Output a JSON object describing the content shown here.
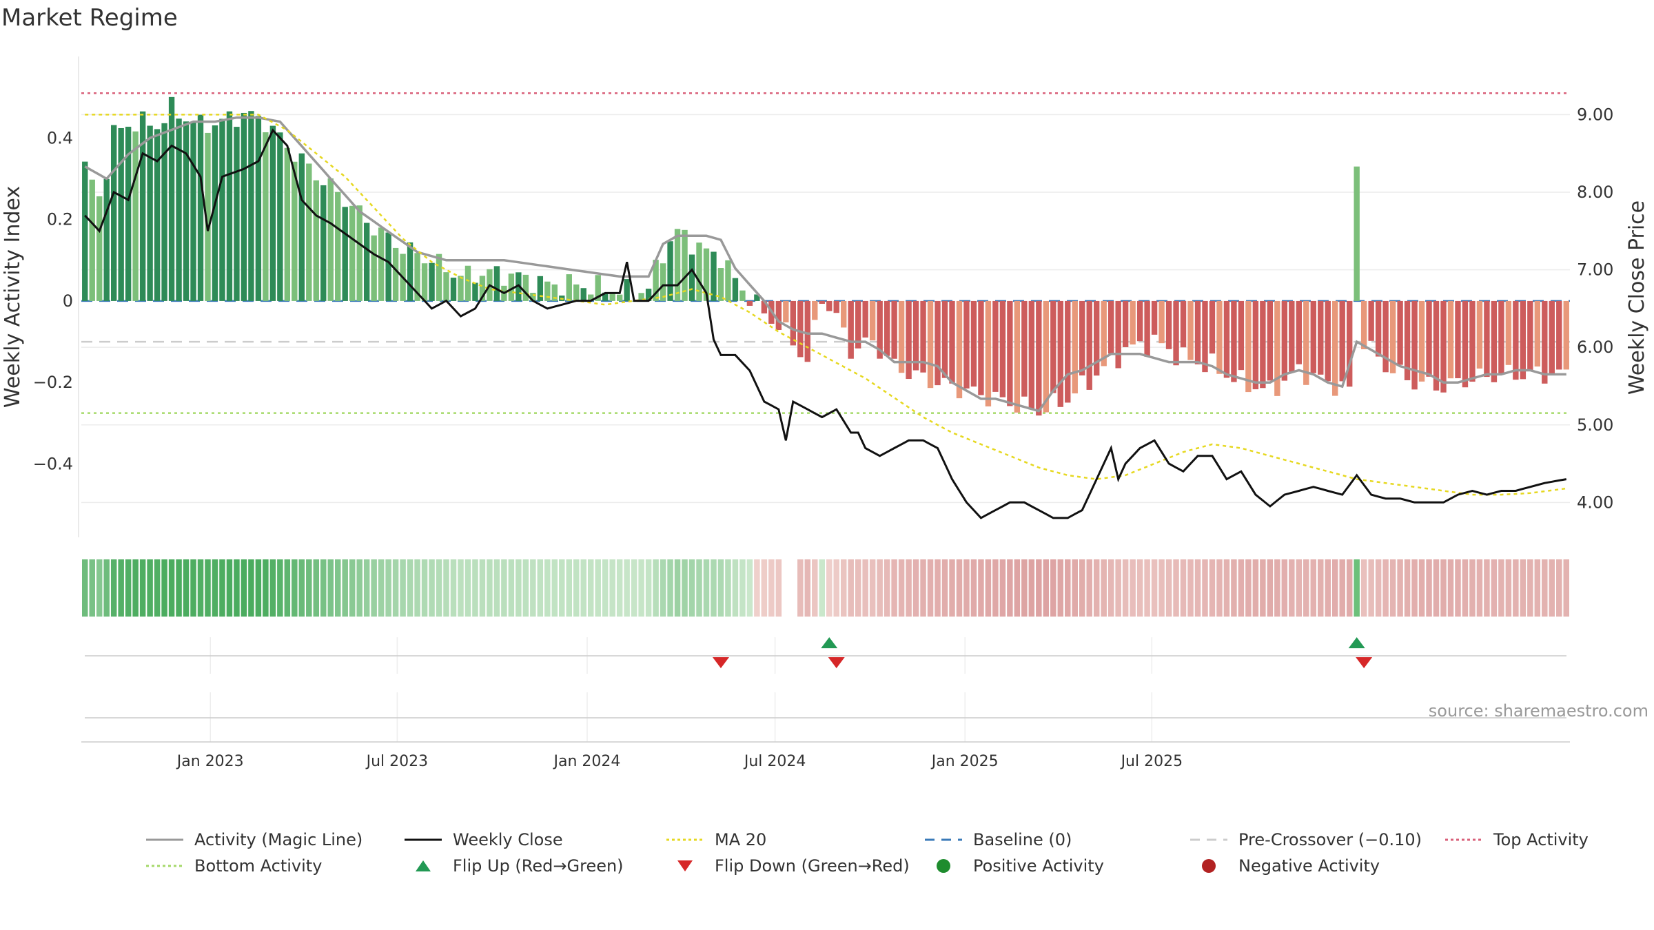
{
  "title": "Market Regime",
  "source_text": "source: sharemaestro.com",
  "chart_data": {
    "type": "bar",
    "y_left_label": "Weekly Activity Index",
    "y_right_label": "Weekly Close Price",
    "y_left_ticks": [
      "0.4",
      "0.2",
      "0",
      "−0.2",
      "−0.4"
    ],
    "y_left_tick_values": [
      0.4,
      0.2,
      0,
      -0.2,
      -0.4
    ],
    "y_right_ticks": [
      "9.00",
      "8.00",
      "7.00",
      "6.00",
      "5.00",
      "4.00"
    ],
    "y_right_tick_values": [
      9,
      8,
      7,
      6,
      5,
      4
    ],
    "ylim_left": [
      -0.58,
      0.6
    ],
    "ylim_right": [
      3.55,
      9.75
    ],
    "x_tick_labels": [
      "Jan 2023",
      "Jul 2023",
      "Jan 2024",
      "Jul 2024",
      "Jan 2025",
      "Jul 2025"
    ],
    "x_tick_dates": [
      "2023-01-01",
      "2023-07-01",
      "2024-01-01",
      "2024-07-01",
      "2025-01-01",
      "2025-07-01"
    ],
    "x_range": [
      "2022-08-29",
      "2025-09-29"
    ],
    "reference_lines": {
      "baseline": 0,
      "pre_crossover": -0.1,
      "top_activity": 0.51,
      "bottom_activity": -0.275
    },
    "activity_knots": [
      [
        0,
        0.33
      ],
      [
        2,
        0.25
      ],
      [
        4,
        0.41
      ],
      [
        7,
        0.44
      ],
      [
        10,
        0.43
      ],
      [
        12,
        0.47
      ],
      [
        14,
        0.45
      ],
      [
        16,
        0.43
      ],
      [
        19,
        0.44
      ],
      [
        22,
        0.46
      ],
      [
        25,
        0.44
      ],
      [
        28,
        0.38
      ],
      [
        32,
        0.31
      ],
      [
        36,
        0.25
      ],
      [
        40,
        0.18
      ],
      [
        44,
        0.13
      ],
      [
        48,
        0.1
      ],
      [
        52,
        0.06
      ],
      [
        56,
        0.07
      ],
      [
        60,
        0.06
      ],
      [
        64,
        0.04
      ],
      [
        68,
        0.04
      ],
      [
        72,
        0.03
      ],
      [
        76,
        0.02
      ],
      [
        78,
        0.03
      ],
      [
        80,
        0.12
      ],
      [
        82,
        0.17
      ],
      [
        86,
        0.12
      ],
      [
        88,
        0.11
      ],
      [
        90,
        0.05
      ],
      [
        92,
        0.01
      ],
      [
        94,
        -0.03
      ],
      [
        96,
        -0.06
      ],
      [
        98,
        -0.1
      ],
      [
        100,
        -0.15
      ],
      [
        102,
        0.01
      ],
      [
        104,
        -0.04
      ],
      [
        106,
        -0.12
      ],
      [
        109,
        -0.1
      ],
      [
        112,
        -0.16
      ],
      [
        116,
        -0.19
      ],
      [
        120,
        -0.21
      ],
      [
        124,
        -0.23
      ],
      [
        128,
        -0.25
      ],
      [
        132,
        -0.27
      ],
      [
        136,
        -0.24
      ],
      [
        140,
        -0.18
      ],
      [
        144,
        -0.12
      ],
      [
        148,
        -0.1
      ],
      [
        152,
        -0.14
      ],
      [
        156,
        -0.16
      ],
      [
        160,
        -0.2
      ],
      [
        164,
        -0.22
      ],
      [
        168,
        -0.17
      ],
      [
        172,
        -0.2
      ],
      [
        175,
        -0.22
      ],
      [
        176,
        0.33
      ],
      [
        177,
        -0.1
      ],
      [
        180,
        -0.16
      ],
      [
        184,
        -0.2
      ],
      [
        188,
        -0.21
      ],
      [
        192,
        -0.19
      ],
      [
        196,
        -0.18
      ],
      [
        200,
        -0.18
      ],
      [
        205,
        -0.18
      ]
    ],
    "magic_line_knots": [
      [
        0,
        0.33
      ],
      [
        3,
        0.3
      ],
      [
        6,
        0.36
      ],
      [
        9,
        0.4
      ],
      [
        12,
        0.42
      ],
      [
        15,
        0.44
      ],
      [
        18,
        0.44
      ],
      [
        21,
        0.45
      ],
      [
        24,
        0.45
      ],
      [
        27,
        0.44
      ],
      [
        30,
        0.38
      ],
      [
        34,
        0.3
      ],
      [
        38,
        0.22
      ],
      [
        42,
        0.17
      ],
      [
        46,
        0.12
      ],
      [
        50,
        0.1
      ],
      [
        54,
        0.1
      ],
      [
        58,
        0.1
      ],
      [
        62,
        0.09
      ],
      [
        66,
        0.08
      ],
      [
        70,
        0.07
      ],
      [
        74,
        0.06
      ],
      [
        76,
        0.06
      ],
      [
        78,
        0.06
      ],
      [
        80,
        0.14
      ],
      [
        82,
        0.16
      ],
      [
        84,
        0.16
      ],
      [
        86,
        0.16
      ],
      [
        88,
        0.15
      ],
      [
        90,
        0.08
      ],
      [
        92,
        0.04
      ],
      [
        94,
        0.0
      ],
      [
        96,
        -0.05
      ],
      [
        98,
        -0.07
      ],
      [
        100,
        -0.08
      ],
      [
        102,
        -0.08
      ],
      [
        104,
        -0.09
      ],
      [
        106,
        -0.1
      ],
      [
        108,
        -0.1
      ],
      [
        110,
        -0.12
      ],
      [
        112,
        -0.15
      ],
      [
        114,
        -0.15
      ],
      [
        116,
        -0.15
      ],
      [
        118,
        -0.16
      ],
      [
        120,
        -0.2
      ],
      [
        122,
        -0.22
      ],
      [
        124,
        -0.24
      ],
      [
        126,
        -0.24
      ],
      [
        128,
        -0.25
      ],
      [
        130,
        -0.26
      ],
      [
        132,
        -0.27
      ],
      [
        134,
        -0.22
      ],
      [
        136,
        -0.18
      ],
      [
        138,
        -0.17
      ],
      [
        140,
        -0.15
      ],
      [
        142,
        -0.13
      ],
      [
        144,
        -0.13
      ],
      [
        146,
        -0.13
      ],
      [
        148,
        -0.14
      ],
      [
        150,
        -0.15
      ],
      [
        152,
        -0.15
      ],
      [
        154,
        -0.15
      ],
      [
        156,
        -0.16
      ],
      [
        158,
        -0.18
      ],
      [
        160,
        -0.19
      ],
      [
        162,
        -0.2
      ],
      [
        164,
        -0.2
      ],
      [
        166,
        -0.18
      ],
      [
        168,
        -0.17
      ],
      [
        170,
        -0.18
      ],
      [
        172,
        -0.2
      ],
      [
        174,
        -0.21
      ],
      [
        176,
        -0.1
      ],
      [
        178,
        -0.12
      ],
      [
        180,
        -0.14
      ],
      [
        182,
        -0.16
      ],
      [
        184,
        -0.17
      ],
      [
        186,
        -0.18
      ],
      [
        188,
        -0.2
      ],
      [
        190,
        -0.2
      ],
      [
        192,
        -0.19
      ],
      [
        194,
        -0.18
      ],
      [
        196,
        -0.18
      ],
      [
        198,
        -0.17
      ],
      [
        200,
        -0.17
      ],
      [
        202,
        -0.18
      ],
      [
        205,
        -0.18
      ]
    ],
    "close_knots": [
      [
        0,
        7.7
      ],
      [
        2,
        7.5
      ],
      [
        4,
        8.0
      ],
      [
        6,
        7.9
      ],
      [
        8,
        8.5
      ],
      [
        10,
        8.4
      ],
      [
        12,
        8.6
      ],
      [
        14,
        8.5
      ],
      [
        16,
        8.2
      ],
      [
        17,
        7.5
      ],
      [
        19,
        8.2
      ],
      [
        22,
        8.3
      ],
      [
        24,
        8.4
      ],
      [
        26,
        8.8
      ],
      [
        28,
        8.6
      ],
      [
        30,
        7.9
      ],
      [
        32,
        7.7
      ],
      [
        34,
        7.6
      ],
      [
        37,
        7.4
      ],
      [
        40,
        7.2
      ],
      [
        42,
        7.1
      ],
      [
        44,
        6.9
      ],
      [
        46,
        6.7
      ],
      [
        48,
        6.5
      ],
      [
        50,
        6.6
      ],
      [
        52,
        6.4
      ],
      [
        54,
        6.5
      ],
      [
        56,
        6.8
      ],
      [
        58,
        6.7
      ],
      [
        60,
        6.8
      ],
      [
        62,
        6.6
      ],
      [
        64,
        6.5
      ],
      [
        66,
        6.55
      ],
      [
        68,
        6.6
      ],
      [
        70,
        6.6
      ],
      [
        72,
        6.7
      ],
      [
        74,
        6.7
      ],
      [
        75,
        7.1
      ],
      [
        76,
        6.6
      ],
      [
        78,
        6.6
      ],
      [
        80,
        6.8
      ],
      [
        82,
        6.8
      ],
      [
        84,
        7.0
      ],
      [
        86,
        6.7
      ],
      [
        87,
        6.1
      ],
      [
        88,
        5.9
      ],
      [
        90,
        5.9
      ],
      [
        92,
        5.7
      ],
      [
        94,
        5.3
      ],
      [
        96,
        5.2
      ],
      [
        97,
        4.8
      ],
      [
        98,
        5.3
      ],
      [
        100,
        5.2
      ],
      [
        102,
        5.1
      ],
      [
        104,
        5.2
      ],
      [
        106,
        4.9
      ],
      [
        107,
        4.9
      ],
      [
        108,
        4.7
      ],
      [
        110,
        4.6
      ],
      [
        112,
        4.7
      ],
      [
        114,
        4.8
      ],
      [
        116,
        4.8
      ],
      [
        118,
        4.7
      ],
      [
        120,
        4.3
      ],
      [
        122,
        4.0
      ],
      [
        124,
        3.8
      ],
      [
        126,
        3.9
      ],
      [
        128,
        4.0
      ],
      [
        130,
        4.0
      ],
      [
        132,
        3.9
      ],
      [
        134,
        3.8
      ],
      [
        136,
        3.8
      ],
      [
        138,
        3.9
      ],
      [
        140,
        4.3
      ],
      [
        142,
        4.7
      ],
      [
        143,
        4.3
      ],
      [
        144,
        4.5
      ],
      [
        146,
        4.7
      ],
      [
        148,
        4.8
      ],
      [
        150,
        4.5
      ],
      [
        152,
        4.4
      ],
      [
        154,
        4.6
      ],
      [
        156,
        4.6
      ],
      [
        158,
        4.3
      ],
      [
        160,
        4.4
      ],
      [
        162,
        4.1
      ],
      [
        164,
        3.95
      ],
      [
        166,
        4.1
      ],
      [
        168,
        4.15
      ],
      [
        170,
        4.2
      ],
      [
        172,
        4.15
      ],
      [
        174,
        4.1
      ],
      [
        176,
        4.35
      ],
      [
        178,
        4.1
      ],
      [
        180,
        4.05
      ],
      [
        182,
        4.05
      ],
      [
        184,
        4.0
      ],
      [
        186,
        4.0
      ],
      [
        188,
        4.0
      ],
      [
        190,
        4.1
      ],
      [
        192,
        4.15
      ],
      [
        194,
        4.1
      ],
      [
        196,
        4.15
      ],
      [
        198,
        4.15
      ],
      [
        200,
        4.2
      ],
      [
        202,
        4.25
      ],
      [
        205,
        4.3
      ]
    ],
    "ma20_knots": [
      [
        0,
        9.0
      ],
      [
        4,
        9.0
      ],
      [
        10,
        9.0
      ],
      [
        16,
        9.0
      ],
      [
        20,
        9.0
      ],
      [
        24,
        9.0
      ],
      [
        28,
        8.8
      ],
      [
        32,
        8.5
      ],
      [
        36,
        8.2
      ],
      [
        40,
        7.8
      ],
      [
        44,
        7.4
      ],
      [
        48,
        7.1
      ],
      [
        52,
        6.9
      ],
      [
        56,
        6.75
      ],
      [
        60,
        6.7
      ],
      [
        64,
        6.65
      ],
      [
        68,
        6.6
      ],
      [
        72,
        6.55
      ],
      [
        76,
        6.6
      ],
      [
        80,
        6.65
      ],
      [
        84,
        6.75
      ],
      [
        88,
        6.65
      ],
      [
        92,
        6.45
      ],
      [
        96,
        6.2
      ],
      [
        100,
        6.0
      ],
      [
        104,
        5.8
      ],
      [
        108,
        5.6
      ],
      [
        112,
        5.35
      ],
      [
        116,
        5.1
      ],
      [
        120,
        4.9
      ],
      [
        124,
        4.75
      ],
      [
        128,
        4.6
      ],
      [
        132,
        4.45
      ],
      [
        136,
        4.35
      ],
      [
        140,
        4.3
      ],
      [
        144,
        4.35
      ],
      [
        148,
        4.5
      ],
      [
        152,
        4.65
      ],
      [
        156,
        4.75
      ],
      [
        160,
        4.7
      ],
      [
        164,
        4.6
      ],
      [
        168,
        4.5
      ],
      [
        172,
        4.4
      ],
      [
        176,
        4.3
      ],
      [
        180,
        4.25
      ],
      [
        184,
        4.2
      ],
      [
        188,
        4.15
      ],
      [
        192,
        4.1
      ],
      [
        196,
        4.1
      ],
      [
        200,
        4.12
      ],
      [
        205,
        4.18
      ]
    ],
    "n_weeks": 206,
    "start_date": "2022-08-29",
    "flip_up_weeks": [
      103,
      176
    ],
    "flip_down_weeks": [
      88,
      104,
      177
    ]
  },
  "legend": [
    {
      "label": "Activity (Magic Line)",
      "style": "solid",
      "color": "#999999"
    },
    {
      "label": "Weekly Close",
      "style": "solid",
      "color": "#111111"
    },
    {
      "label": "MA 20",
      "style": "dotted",
      "color": "#e6d820"
    },
    {
      "label": "Baseline (0)",
      "style": "dashed",
      "color": "#3a7ab8"
    },
    {
      "label": "Pre-Crossover (−0.10)",
      "style": "dashed",
      "color": "#cccccc"
    },
    {
      "label": "Top Activity",
      "style": "dotted",
      "color": "#d9607a"
    },
    {
      "label": "Bottom Activity",
      "style": "dotted",
      "color": "#a6d96a"
    },
    {
      "label": "Flip Up (Red→Green)",
      "style": "triangle-up",
      "color": "#229954"
    },
    {
      "label": "Flip Down (Green→Red)",
      "style": "triangle-down",
      "color": "#d62728"
    },
    {
      "label": "Positive Activity",
      "style": "circle",
      "color": "#1e8c2e"
    },
    {
      "label": "Negative Activity",
      "style": "circle",
      "color": "#b22222"
    }
  ]
}
